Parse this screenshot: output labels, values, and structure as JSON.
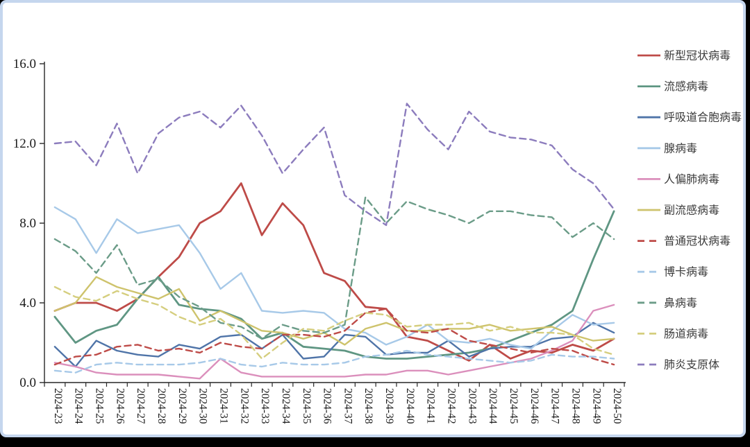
{
  "window": {
    "outer_background": "#000000",
    "panel_background": "#ffffff",
    "panel_border_color": "#c5d6ee"
  },
  "chart_data": {
    "type": "line",
    "title": "",
    "xlabel": "",
    "ylabel": "",
    "grid": false,
    "legend_position": "right",
    "ylim": [
      0,
      16
    ],
    "y_ticks": [
      "0.0",
      "4.0",
      "8.0",
      "12.0",
      "16.0"
    ],
    "y_tick_values": [
      0,
      4,
      8,
      12,
      16
    ],
    "x_labels": [
      "2024-23",
      "2024-24",
      "2024-25",
      "2024-26",
      "2024-27",
      "2024-28",
      "2024-29",
      "2024-30",
      "2024-31",
      "2024-32",
      "2024-33",
      "2024-34",
      "2024-35",
      "2024-36",
      "2024-37",
      "2024-38",
      "2024-39",
      "2024-40",
      "2024-41",
      "2024-42",
      "2024-43",
      "2024-44",
      "2024-45",
      "2024-46",
      "2024-47",
      "2024-48",
      "2024-49",
      "2024-50"
    ],
    "axis_color": "#262626",
    "label_color": "#1a1a1a",
    "legend_text_color": "#3b3b3b",
    "series": [
      {
        "name": "新型冠状病毒",
        "color": "#be4b48",
        "dashed": false,
        "width": 2.8,
        "values": [
          3.6,
          4.0,
          4.0,
          3.6,
          4.2,
          5.3,
          6.3,
          8.0,
          8.6,
          10.0,
          7.4,
          9.0,
          7.9,
          5.5,
          5.1,
          3.8,
          3.7,
          2.3,
          2.1,
          1.6,
          1.1,
          1.9,
          1.2,
          1.6,
          1.5,
          1.9,
          1.6,
          2.2
        ]
      },
      {
        "name": "流感病毒",
        "color": "#5f9683",
        "dashed": false,
        "width": 2.8,
        "values": [
          3.3,
          2.0,
          2.6,
          2.9,
          4.2,
          5.3,
          3.9,
          3.7,
          3.6,
          3.2,
          2.2,
          2.5,
          1.8,
          1.7,
          1.6,
          1.3,
          1.2,
          1.2,
          1.3,
          1.4,
          1.5,
          1.7,
          2.1,
          2.5,
          2.9,
          3.6,
          6.2,
          8.6
        ]
      },
      {
        "name": "呼吸道合胞病毒",
        "color": "#4f74a8",
        "dashed": false,
        "width": 2.4,
        "values": [
          1.8,
          0.8,
          2.1,
          1.6,
          1.4,
          1.3,
          1.9,
          1.7,
          2.3,
          2.4,
          1.7,
          2.4,
          1.2,
          1.3,
          2.4,
          2.3,
          1.4,
          1.5,
          1.5,
          2.1,
          1.3,
          1.7,
          1.8,
          1.8,
          2.2,
          2.3,
          3.0,
          2.5
        ]
      },
      {
        "name": "腺病毒",
        "color": "#a7c9e8",
        "dashed": false,
        "width": 2.4,
        "values": [
          8.8,
          8.2,
          6.5,
          8.2,
          7.5,
          7.7,
          7.9,
          6.5,
          4.7,
          5.5,
          3.6,
          3.5,
          3.6,
          3.5,
          2.7,
          2.5,
          1.9,
          2.3,
          2.9,
          2.1,
          2.0,
          2.2,
          1.9,
          1.7,
          2.6,
          3.4,
          2.9,
          3.0
        ]
      },
      {
        "name": "人偏肺病毒",
        "color": "#db8fbc",
        "dashed": false,
        "width": 2.4,
        "values": [
          1.0,
          0.8,
          0.5,
          0.4,
          0.4,
          0.4,
          0.3,
          0.2,
          1.2,
          0.5,
          0.3,
          0.3,
          0.3,
          0.3,
          0.3,
          0.4,
          0.4,
          0.6,
          0.6,
          0.4,
          0.6,
          0.8,
          1.0,
          1.2,
          1.6,
          2.1,
          3.6,
          3.9
        ]
      },
      {
        "name": "副流感病毒",
        "color": "#cec36c",
        "dashed": false,
        "width": 2.4,
        "values": [
          3.6,
          4.0,
          5.3,
          4.8,
          4.5,
          4.2,
          4.7,
          3.1,
          3.6,
          3.1,
          2.6,
          2.5,
          2.2,
          2.5,
          1.9,
          2.7,
          3.0,
          2.6,
          2.6,
          2.7,
          2.7,
          2.9,
          2.6,
          2.7,
          2.8,
          2.4,
          2.1,
          2.2
        ]
      },
      {
        "name": "普通冠状病毒",
        "color": "#be4b48",
        "dashed": true,
        "width": 2.4,
        "values": [
          0.9,
          1.3,
          1.4,
          1.8,
          1.9,
          1.6,
          1.7,
          1.5,
          2.0,
          1.8,
          1.7,
          2.4,
          2.4,
          2.3,
          2.6,
          3.5,
          3.7,
          2.6,
          2.5,
          2.7,
          2.1,
          1.9,
          1.7,
          1.5,
          1.7,
          1.6,
          1.2,
          0.9
        ]
      },
      {
        "name": "博卡病毒",
        "color": "#a7c9e8",
        "dashed": true,
        "width": 2.4,
        "values": [
          0.6,
          0.5,
          0.9,
          1.0,
          0.9,
          0.9,
          0.9,
          1.0,
          1.2,
          0.9,
          0.8,
          1.0,
          0.9,
          0.9,
          1.0,
          1.3,
          1.4,
          1.6,
          1.4,
          1.3,
          1.2,
          1.1,
          1.0,
          1.1,
          1.4,
          1.3,
          1.3,
          1.2
        ]
      },
      {
        "name": "鼻病毒",
        "color": "#6b9c88",
        "dashed": true,
        "width": 2.4,
        "values": [
          7.2,
          6.6,
          5.5,
          6.9,
          4.9,
          5.2,
          4.3,
          3.8,
          3.0,
          2.8,
          2.2,
          2.9,
          2.6,
          2.5,
          2.9,
          9.3,
          8.0,
          9.1,
          8.7,
          8.4,
          8.0,
          8.6,
          8.6,
          8.4,
          8.3,
          7.3,
          8.0,
          7.2
        ]
      },
      {
        "name": "肠道病毒",
        "color": "#d5ce7e",
        "dashed": true,
        "width": 2.4,
        "values": [
          4.8,
          4.3,
          4.1,
          4.6,
          4.2,
          3.9,
          3.3,
          2.9,
          3.2,
          2.4,
          1.2,
          2.0,
          2.7,
          2.6,
          3.1,
          3.5,
          3.4,
          2.8,
          2.9,
          2.9,
          3.0,
          2.6,
          2.8,
          2.5,
          2.5,
          2.4,
          1.7,
          1.4
        ]
      },
      {
        "name": "肺炎支原体",
        "color": "#8c7cbd",
        "dashed": true,
        "width": 2.4,
        "values": [
          12.0,
          12.1,
          10.9,
          13.0,
          10.5,
          12.5,
          13.3,
          13.6,
          12.8,
          13.9,
          12.4,
          10.5,
          11.7,
          12.8,
          9.4,
          8.6,
          7.9,
          14.0,
          12.7,
          11.7,
          13.6,
          12.6,
          12.3,
          12.2,
          11.9,
          10.7,
          10.0,
          8.7
        ]
      }
    ]
  }
}
